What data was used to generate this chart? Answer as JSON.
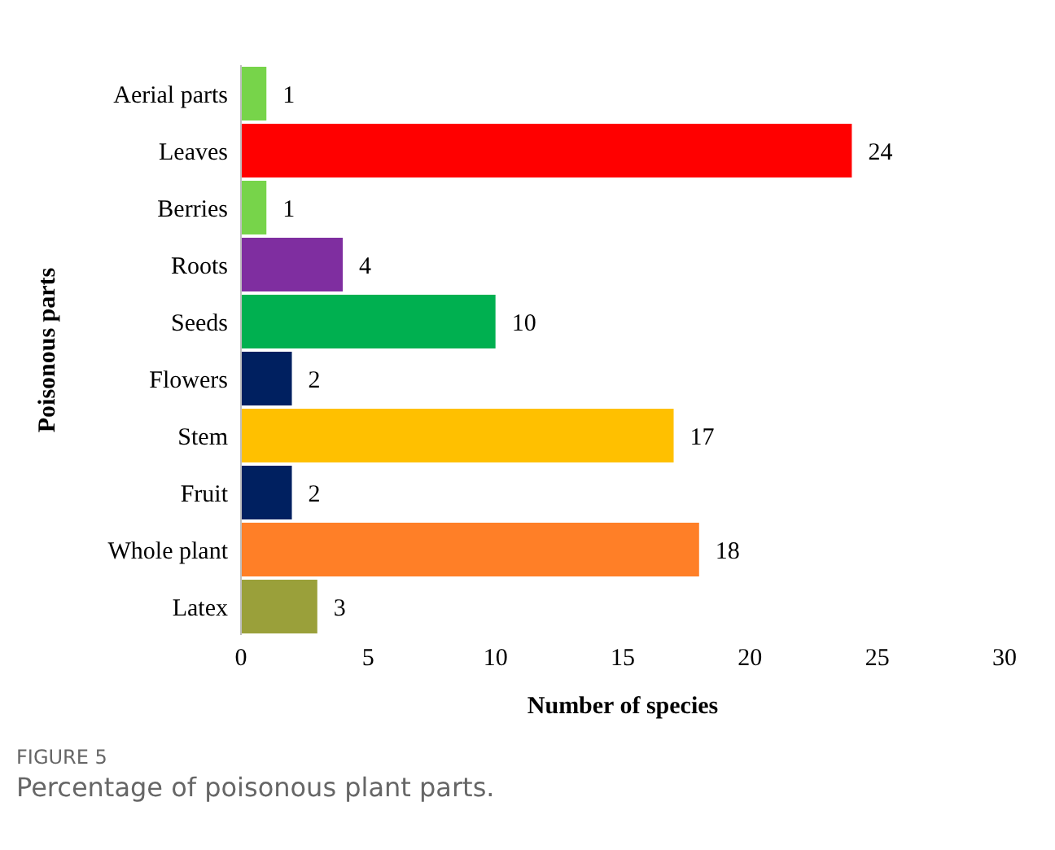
{
  "chart_data": {
    "type": "bar",
    "orientation": "horizontal",
    "xlabel": "Number of species",
    "ylabel": "Poisonous parts",
    "categories": [
      "Aerial parts",
      "Leaves",
      "Berries",
      "Roots",
      "Seeds",
      "Flowers",
      "Stem",
      "Fruit",
      "Whole plant",
      "Latex"
    ],
    "values": [
      1,
      24,
      1,
      4,
      10,
      2,
      17,
      2,
      18,
      3
    ],
    "colors": [
      "#77d44a",
      "#ff0000",
      "#77d44a",
      "#7f2ea0",
      "#00b050",
      "#002060",
      "#ffc000",
      "#002060",
      "#ff7f27",
      "#9aa03a"
    ],
    "xlim": [
      0,
      30
    ],
    "xticks": [
      0,
      5,
      10,
      15,
      20,
      25,
      30
    ],
    "data_labels": true,
    "grid": false,
    "legend": false,
    "annotations": [
      "FIGURE 5",
      "Percentage of poisonous plant parts."
    ]
  }
}
